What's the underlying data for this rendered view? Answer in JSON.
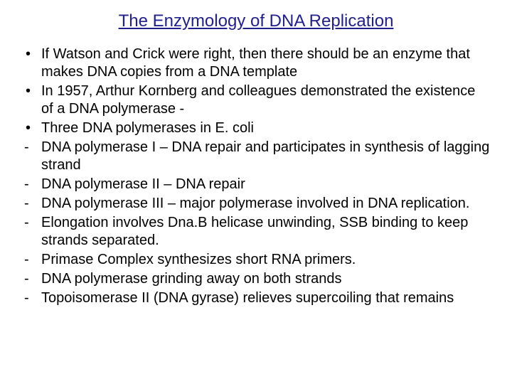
{
  "title": "The Enzymology of DNA Replication",
  "title_color": "#1f1f8f",
  "body_color": "#000000",
  "title_fontsize": 24,
  "body_fontsize": 20,
  "items": [
    {
      "marker": "bullet",
      "text": "If Watson and Crick were right, then there should be an enzyme that makes DNA copies from a DNA template"
    },
    {
      "marker": "bullet",
      "text": "In 1957, Arthur Kornberg and colleagues demonstrated the existence of a DNA polymerase -"
    },
    {
      "marker": "bullet",
      "text": "Three DNA polymerases in E. coli"
    },
    {
      "marker": "dash",
      "text": "DNA polymerase I – DNA repair and participates in synthesis of lagging strand"
    },
    {
      "marker": "dash",
      "text": "DNA polymerase II – DNA repair"
    },
    {
      "marker": "dash",
      "text": "DNA polymerase III – major polymerase involved in DNA replication."
    },
    {
      "marker": "dash",
      "text": " Elongation involves Dna.B helicase unwinding, SSB binding to keep strands separated."
    },
    {
      "marker": "dash",
      "text": "Primase Complex synthesizes short RNA primers."
    },
    {
      "marker": "dash",
      "text": "DNA polymerase grinding away on both strands"
    },
    {
      "marker": "dash",
      "text": "Topoisomerase II (DNA gyrase) relieves supercoiling that remains"
    }
  ]
}
